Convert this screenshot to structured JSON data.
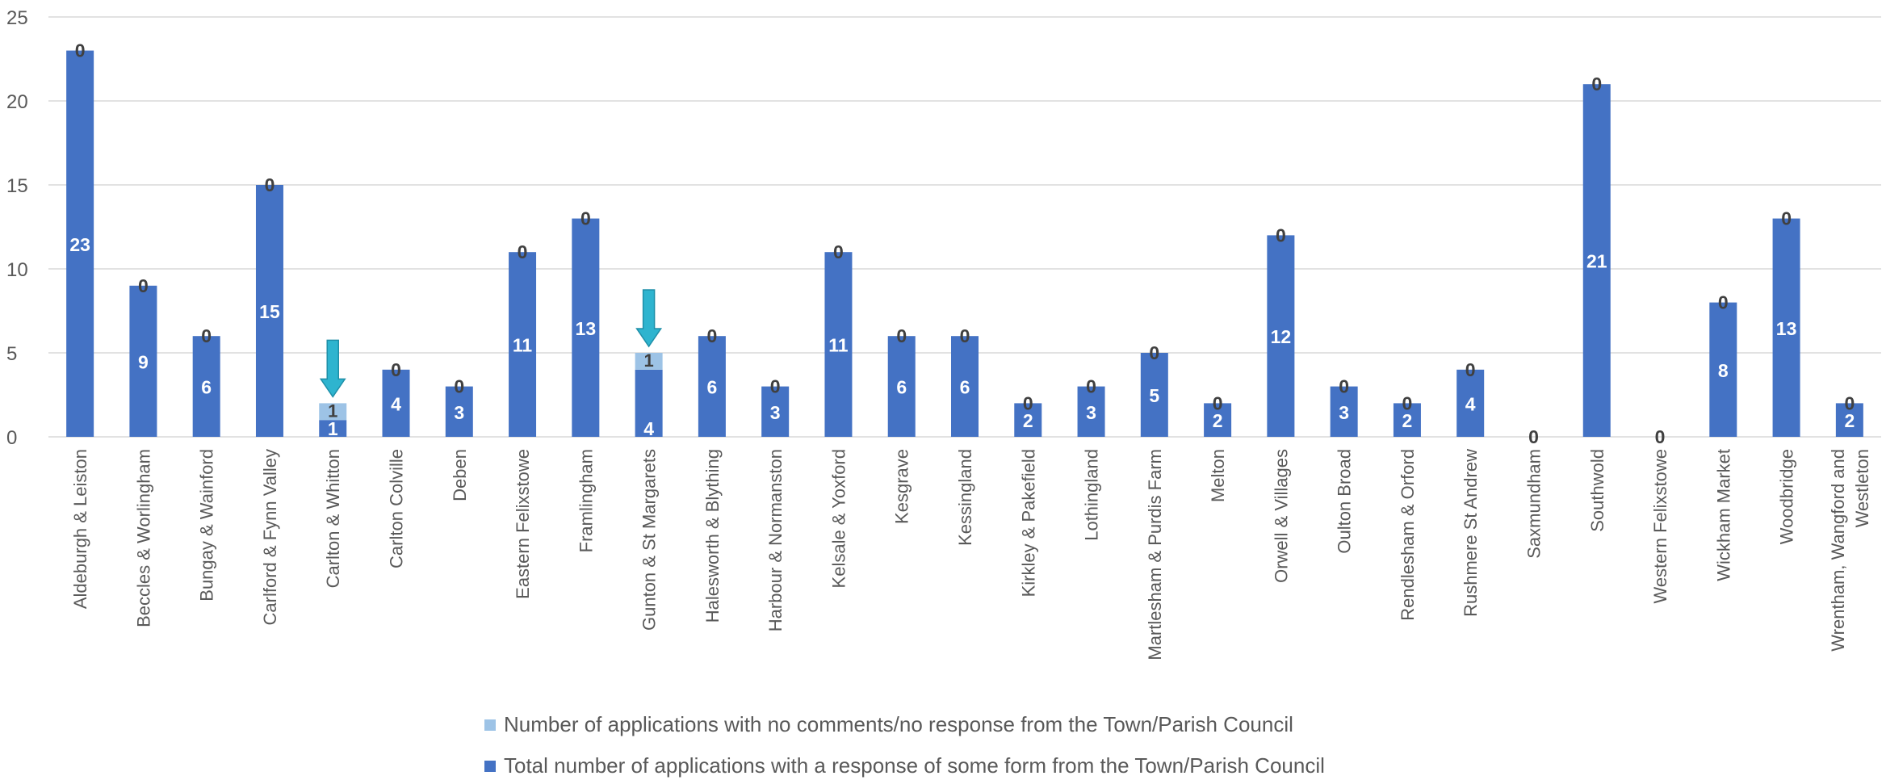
{
  "chart_data": {
    "type": "bar",
    "stacked": true,
    "categories": [
      "Aldeburgh & Leiston",
      "Beccles & Worlingham",
      "Bungay & Wainford",
      "Carlford & Fynn Valley",
      "Carlton & Whitton",
      "Carlton Colville",
      "Deben",
      "Eastern Felixstowe",
      "Framlingham",
      "Gunton & St Margarets",
      "Halesworth & Blything",
      "Harbour & Normanston",
      "Kelsale & Yoxford",
      "Kesgrave",
      "Kessingland",
      "Kirkley & Pakefield",
      "Lothingland",
      "Martlesham & Purdis Farm",
      "Melton",
      "Orwell & Villages",
      "Oulton Broad",
      "Rendlesham & Orford",
      "Rushmere St Andrew",
      "Saxmundham",
      "Southwold",
      "Western Felixstowe",
      "Wickham Market",
      "Woodbridge",
      "Wrentham, Wangford and Westleton"
    ],
    "series": [
      {
        "name": "Total number of applications with a response of some form from the Town/Parish Council",
        "color": "#4472C4",
        "values": [
          23,
          9,
          6,
          15,
          1,
          4,
          3,
          11,
          13,
          4,
          6,
          3,
          11,
          6,
          6,
          2,
          3,
          5,
          2,
          12,
          3,
          2,
          4,
          0,
          21,
          0,
          8,
          13,
          2
        ]
      },
      {
        "name": "Number of applications with no comments/no response from the Town/Parish Council",
        "color": "#9DC3E6",
        "values": [
          0,
          0,
          0,
          0,
          1,
          0,
          0,
          0,
          0,
          1,
          0,
          0,
          0,
          0,
          0,
          0,
          0,
          0,
          0,
          0,
          0,
          0,
          0,
          0,
          0,
          0,
          0,
          0,
          0
        ]
      }
    ],
    "yticks": [
      "0",
      "5",
      "10",
      "15",
      "20",
      "25"
    ],
    "ylim": [
      0,
      25
    ],
    "grid": true,
    "legend_position": "bottom",
    "annotations": [
      {
        "type": "arrow",
        "category": "Carlton & Whitton",
        "color": "#2EB4CF"
      },
      {
        "type": "arrow",
        "category": "Gunton & St Margarets",
        "color": "#2EB4CF"
      }
    ]
  }
}
